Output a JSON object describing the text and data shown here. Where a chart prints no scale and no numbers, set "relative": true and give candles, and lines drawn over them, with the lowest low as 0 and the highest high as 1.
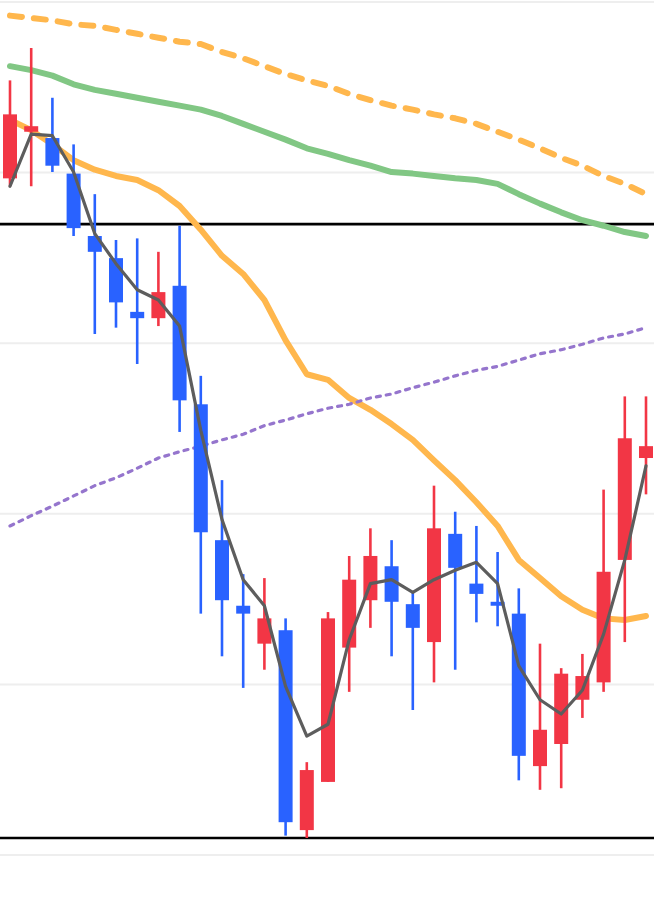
{
  "chart_data": {
    "type": "candlestick",
    "relative": true,
    "grid": "y",
    "categories": [
      null,
      null,
      null,
      null,
      null,
      null,
      null,
      null,
      null,
      null,
      null,
      null,
      null,
      null,
      null,
      null,
      null,
      null,
      null,
      null,
      null,
      null,
      null,
      null,
      null,
      null,
      null,
      null,
      null,
      null,
      null
    ],
    "ohlc": [
      [
        0.835,
        0.959,
        0.825,
        0.916
      ],
      [
        0.894,
        1,
        0.825,
        0.901
      ],
      [
        0.886,
        0.937,
        0.843,
        0.851
      ],
      [
        0.841,
        0.878,
        0.762,
        0.772
      ],
      [
        0.762,
        0.815,
        0.638,
        0.742
      ],
      [
        0.734,
        0.757,
        0.646,
        0.678
      ],
      [
        0.666,
        0.759,
        0.6,
        0.658
      ],
      [
        0.658,
        0.742,
        0.648,
        0.691
      ],
      [
        0.699,
        0.775,
        0.514,
        0.554
      ],
      [
        0.549,
        0.585,
        0.284,
        0.387
      ],
      [
        0.377,
        0.453,
        0.23,
        0.301
      ],
      [
        0.294,
        0.334,
        0.19,
        0.284
      ],
      [
        0.246,
        0.329,
        0.213,
        0.278
      ],
      [
        0.263,
        0.278,
        0.003,
        0.02
      ],
      [
        0.01,
        0.096,
        0,
        0.086
      ],
      [
        0.071,
        0.286,
        0.071,
        0.278
      ],
      [
        0.241,
        0.357,
        0.185,
        0.327
      ],
      [
        0.301,
        0.392,
        0.266,
        0.357
      ],
      [
        0.344,
        0.377,
        0.23,
        0.299
      ],
      [
        0.296,
        0.311,
        0.162,
        0.266
      ],
      [
        0.248,
        0.446,
        0.197,
        0.392
      ],
      [
        0.385,
        0.413,
        0.213,
        0.342
      ],
      [
        0.322,
        0.395,
        0.273,
        0.309
      ],
      [
        0.299,
        0.362,
        0.268,
        0.294
      ],
      [
        0.284,
        0.316,
        0.073,
        0.104
      ],
      [
        0.091,
        0.246,
        0.061,
        0.137
      ],
      [
        0.119,
        0.215,
        0.063,
        0.208
      ],
      [
        0.175,
        0.233,
        0.152,
        0.205
      ],
      [
        0.197,
        0.441,
        0.185,
        0.337
      ],
      [
        0.352,
        0.559,
        0.248,
        0.506
      ],
      [
        0.481,
        0.559,
        0.435,
        0.496
      ]
    ],
    "colors": [
      "#f23645",
      "#f23645",
      "#2962ff",
      "#2962ff",
      "#2962ff",
      "#2962ff",
      "#2962ff",
      "#f23645",
      "#2962ff",
      "#2962ff",
      "#2962ff",
      "#2962ff",
      "#f23645",
      "#2962ff",
      "#f23645",
      "#f23645",
      "#f23645",
      "#f23645",
      "#2962ff",
      "#2962ff",
      "#f23645",
      "#2962ff",
      "#2962ff",
      "#2962ff",
      "#2962ff",
      "#f23645",
      "#f23645",
      "#f23645",
      "#f23645",
      "#f23645",
      "#f23645"
    ],
    "series": [
      {
        "type": "line",
        "color": "#5d5d5d",
        "line_style": "solid",
        "values": [
          0.825,
          0.891,
          0.889,
          0.843,
          0.765,
          0.727,
          0.694,
          0.681,
          0.648,
          0.516,
          0.403,
          0.327,
          0.294,
          0.192,
          0.129,
          0.144,
          0.251,
          0.322,
          0.327,
          0.311,
          0.327,
          0.339,
          0.349,
          0.322,
          0.218,
          0.175,
          0.157,
          0.187,
          0.258,
          0.352,
          0.471
        ]
      },
      {
        "type": "line",
        "color": "#ffb74d",
        "line_style": "solid",
        "values": [
          0.909,
          0.896,
          0.878,
          0.858,
          0.846,
          0.838,
          0.833,
          0.82,
          0.8,
          0.77,
          0.737,
          0.714,
          0.681,
          0.63,
          0.587,
          0.58,
          0.557,
          0.542,
          0.524,
          0.504,
          0.478,
          0.453,
          0.425,
          0.395,
          0.352,
          0.329,
          0.306,
          0.289,
          0.278,
          0.276,
          0.281
        ]
      },
      {
        "type": "line",
        "color": "#81c784",
        "line_style": "solid",
        "values": [
          0.977,
          0.972,
          0.965,
          0.954,
          0.947,
          0.942,
          0.937,
          0.932,
          0.927,
          0.922,
          0.914,
          0.904,
          0.894,
          0.884,
          0.873,
          0.866,
          0.858,
          0.851,
          0.843,
          0.841,
          0.838,
          0.835,
          0.833,
          0.828,
          0.815,
          0.803,
          0.792,
          0.782,
          0.775,
          0.767,
          0.762
        ]
      },
      {
        "type": "line",
        "color": "#ffb74d",
        "line_style": "dashed",
        "values": [
          1.041,
          1.038,
          1.035,
          1.03,
          1.028,
          1.023,
          1.018,
          1.013,
          1.008,
          1.005,
          0.995,
          0.987,
          0.977,
          0.967,
          0.959,
          0.952,
          0.942,
          0.934,
          0.927,
          0.922,
          0.916,
          0.911,
          0.904,
          0.894,
          0.884,
          0.873,
          0.861,
          0.851,
          0.838,
          0.828,
          0.815
        ]
      },
      {
        "type": "line",
        "color": "#9575cd",
        "line_style": "dotted",
        "values": [
          0.395,
          0.408,
          0.42,
          0.433,
          0.446,
          0.456,
          0.468,
          0.481,
          0.489,
          0.496,
          0.504,
          0.511,
          0.522,
          0.529,
          0.537,
          0.544,
          0.549,
          0.557,
          0.562,
          0.57,
          0.577,
          0.585,
          0.592,
          0.597,
          0.605,
          0.613,
          0.618,
          0.625,
          0.633,
          0.638,
          0.646
        ]
      }
    ],
    "ref_lines": [
      {
        "axis": "y",
        "value": 0.777,
        "color": "#000000"
      },
      {
        "axis": "y",
        "value": 0,
        "color": "#000000"
      }
    ]
  }
}
